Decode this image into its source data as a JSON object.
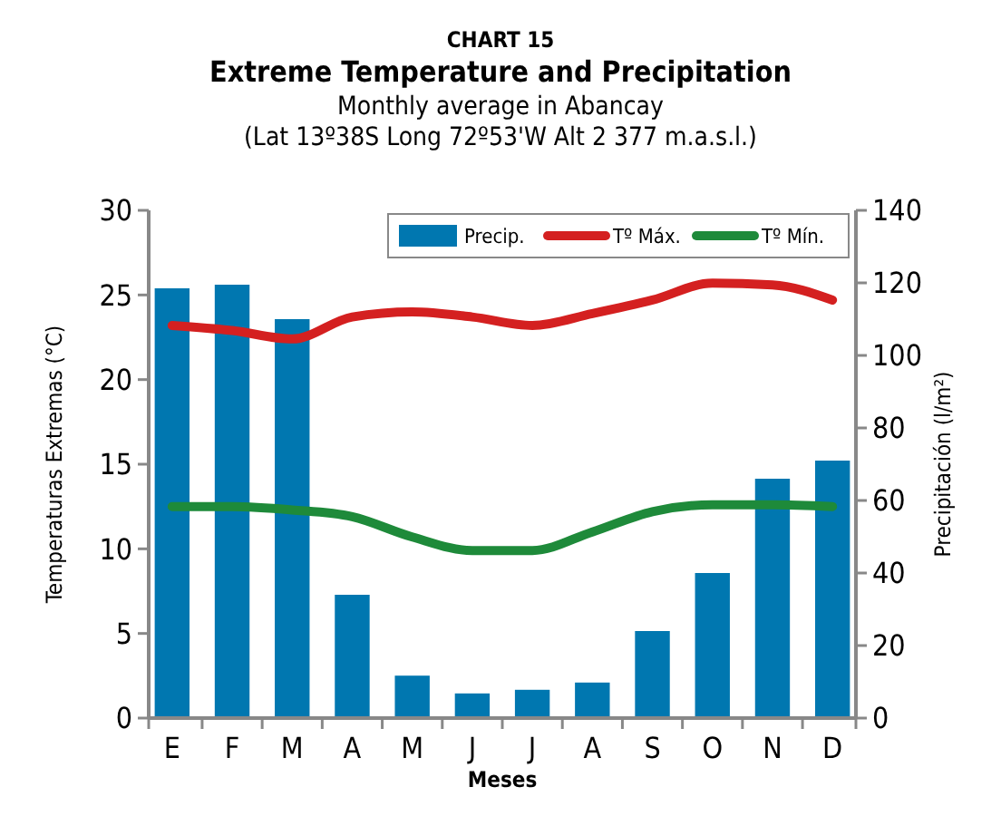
{
  "chart_data": {
    "type": "bar",
    "title": "CHART 15",
    "subtitle": "Extreme Temperature and Precipitation",
    "annotations": [
      "Monthly average in Abancay",
      "(Lat 13º38S Long 72º53'W Alt 2 377 m.a.s.l.)"
    ],
    "xlabel": "Meses",
    "ylabel": "Temperaturas Extremas (°C)",
    "y2label": "Precipitación (l/m²)",
    "categories": [
      "E",
      "F",
      "M",
      "A",
      "M",
      "J",
      "J",
      "A",
      "S",
      "O",
      "N",
      "D"
    ],
    "series": [
      {
        "name": "Precip.",
        "axis": "y2",
        "color": "#0077b0",
        "values": [
          118.5,
          119.5,
          110,
          34,
          11.7,
          6.8,
          7.8,
          9.8,
          24,
          40,
          66,
          71
        ]
      },
      {
        "name": "Tº Máx.",
        "type": "line",
        "axis": "y",
        "color": "#d42020",
        "values": [
          23.2,
          22.9,
          22.4,
          23.7,
          24.0,
          23.7,
          23.2,
          23.9,
          24.7,
          25.7,
          25.6,
          24.7
        ]
      },
      {
        "name": "Tº Mín.",
        "type": "line",
        "axis": "y",
        "color": "#1e8a3a",
        "values": [
          12.5,
          12.5,
          12.3,
          11.9,
          10.7,
          9.9,
          9.9,
          11,
          12.2,
          12.6,
          12.6,
          12.5
        ]
      }
    ],
    "ylim": [
      0,
      30
    ],
    "yticks": [
      0,
      5,
      10,
      15,
      20,
      25,
      30
    ],
    "y2lim": [
      0,
      140
    ],
    "y2ticks": [
      0,
      20,
      40,
      60,
      80,
      100,
      120,
      140
    ],
    "grid": false,
    "legend": "top right",
    "marker": "none",
    "line_style": "solid"
  }
}
